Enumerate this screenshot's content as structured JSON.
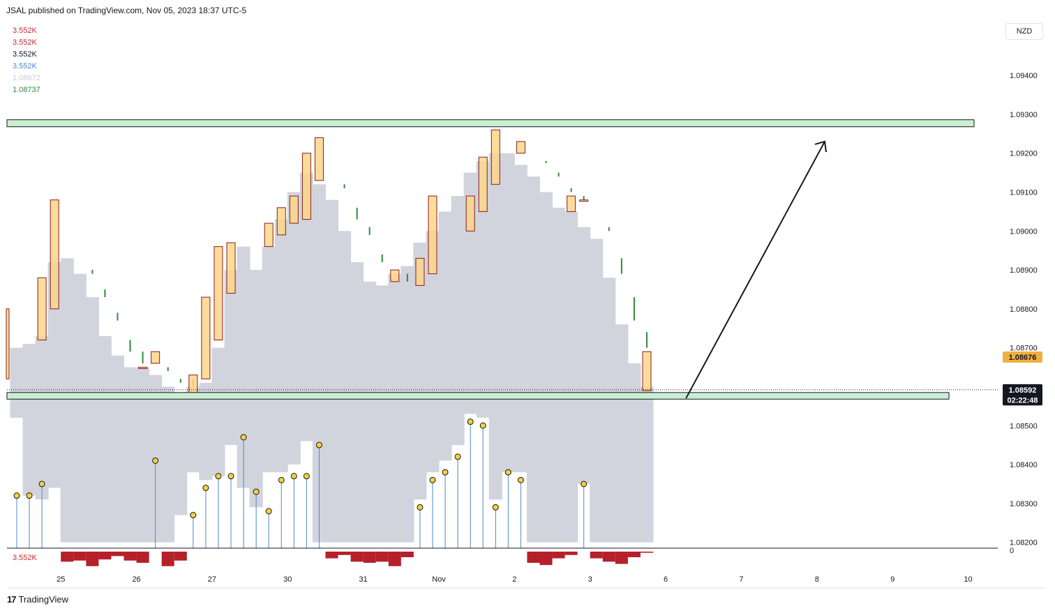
{
  "header": {
    "publisher": "JSAL published on TradingView.com, Nov 05, 2023 18:37 UTC-5"
  },
  "legend": [
    {
      "text": "3.552K",
      "color": "#c62833"
    },
    {
      "text": "3.552K",
      "color": "#c62833"
    },
    {
      "text": "3.552K",
      "color": "#131722"
    },
    {
      "text": "3.552K",
      "color": "#4a88d0"
    },
    {
      "text": "1.08672",
      "color": "#c9ccd6"
    },
    {
      "text": "1.08737",
      "color": "#2e8b3a"
    }
  ],
  "currency": "NZD",
  "volume_label": "3.552K",
  "footer": {
    "logo_text": "TradingView",
    "logo_mark": "17"
  },
  "price_badges": [
    {
      "text": "1.08676",
      "value": 1.08676,
      "bg": "#f0b040",
      "fg": "#131722"
    },
    {
      "text": "1.08592",
      "value": 1.08592,
      "bg": "#131722",
      "fg": "#ffffff"
    },
    {
      "text": "02:22:48",
      "value": 1.08566,
      "bg": "#131722",
      "fg": "#ffffff"
    }
  ],
  "colors": {
    "cloud": "#d2d4dd",
    "box_fill": "#fcd68a",
    "box_stroke": "#8a1c1c",
    "wick": "#2e8b3a",
    "dot": "#f6d03a",
    "stem": "#4a88d0",
    "volume": "#b5202a",
    "zone_fill": "#c9efd0",
    "zone_stroke": "#131722"
  },
  "chart_data": {
    "type": "line",
    "y_axis": {
      "ticks": [
        "1.09400",
        "1.09300",
        "1.09200",
        "1.09100",
        "1.09000",
        "1.08900",
        "1.08800",
        "1.08700",
        "1.08500",
        "1.08400",
        "1.08300",
        "1.08200"
      ],
      "tick_values": [
        1.094,
        1.093,
        1.092,
        1.091,
        1.09,
        1.089,
        1.088,
        1.087,
        1.085,
        1.084,
        1.083,
        1.082
      ],
      "volume_zero_label": "0",
      "range": [
        1.08185,
        1.0954
      ]
    },
    "x_axis": {
      "labels": [
        "25",
        "26",
        "27",
        "30",
        "31",
        "Nov",
        "2",
        "3",
        "6",
        "7",
        "8",
        "9",
        "10"
      ],
      "label_index": [
        3.5,
        9.5,
        15.5,
        21.5,
        27.5,
        33.5,
        39.5,
        45.5,
        51.5,
        57.5,
        63.5,
        69.5,
        75.5
      ]
    },
    "bar_count_visible": 51,
    "zones": [
      {
        "name": "resistance",
        "low": 1.09268,
        "high": 1.09286,
        "from_index": 0,
        "to_index": 77
      },
      {
        "name": "support",
        "low": 1.08568,
        "high": 1.08585,
        "from_index": 0,
        "to_index": 75
      }
    ],
    "arrow": {
      "from": [
        52,
        1.0857
      ],
      "to": [
        65.5,
        1.0923
      ]
    },
    "current_price_line": 1.08592,
    "cloud_top": [
      1.087,
      1.0871,
      1.0873,
      1.0892,
      1.0893,
      1.0889,
      1.0883,
      1.0873,
      1.0868,
      1.0865,
      1.0865,
      1.0863,
      1.086,
      1.0858,
      1.086,
      1.0861,
      1.087,
      1.089,
      1.0896,
      1.089,
      1.0896,
      1.0903,
      1.091,
      1.0915,
      1.0912,
      1.0908,
      1.09,
      1.0892,
      1.0887,
      1.0886,
      1.0889,
      1.0891,
      1.0897,
      1.09,
      1.0905,
      1.0909,
      1.0915,
      1.0918,
      1.092,
      1.092,
      1.0917,
      1.0914,
      1.091,
      1.0906,
      1.0905,
      1.0901,
      1.0898,
      1.0888,
      1.0876,
      1.0866,
      1.086
    ],
    "cloud_bottom": [
      1.0852,
      1.0832,
      1.0831,
      1.0834,
      1.082,
      1.082,
      1.082,
      1.082,
      1.082,
      1.082,
      1.082,
      1.082,
      1.082,
      1.0827,
      1.0838,
      1.0836,
      1.0837,
      1.0845,
      1.0834,
      1.0829,
      1.0838,
      1.0838,
      1.084,
      1.0846,
      1.082,
      1.082,
      1.082,
      1.082,
      1.082,
      1.082,
      1.082,
      1.082,
      1.0831,
      1.0838,
      1.0841,
      1.0845,
      1.0853,
      1.0852,
      1.0831,
      1.0838,
      1.0838,
      1.082,
      1.082,
      1.082,
      1.082,
      1.0835,
      1.082,
      1.082,
      1.082,
      1.082,
      1.082
    ],
    "boxes": [
      {
        "i": 0,
        "top": 1.088,
        "bottom": 1.0862
      },
      {
        "i": 2,
        "top": 1.0888,
        "bottom": 1.0872
      },
      {
        "i": 3,
        "top": 1.0908,
        "bottom": 1.088
      },
      {
        "i": 10,
        "top": 1.0865,
        "bottom": 1.0865
      },
      {
        "i": 11,
        "top": 1.0869,
        "bottom": 1.0866
      },
      {
        "i": 14,
        "top": 1.0863,
        "bottom": 1.0858
      },
      {
        "i": 15,
        "top": 1.0883,
        "bottom": 1.0862
      },
      {
        "i": 16,
        "top": 1.0896,
        "bottom": 1.0872
      },
      {
        "i": 17,
        "top": 1.0897,
        "bottom": 1.0884
      },
      {
        "i": 20,
        "top": 1.0902,
        "bottom": 1.0896
      },
      {
        "i": 21,
        "top": 1.0906,
        "bottom": 1.0899
      },
      {
        "i": 22,
        "top": 1.0909,
        "bottom": 1.0902
      },
      {
        "i": 23,
        "top": 1.092,
        "bottom": 1.0903
      },
      {
        "i": 24,
        "top": 1.0924,
        "bottom": 1.0913
      },
      {
        "i": 30,
        "top": 1.089,
        "bottom": 1.0887
      },
      {
        "i": 32,
        "top": 1.0893,
        "bottom": 1.0886
      },
      {
        "i": 33,
        "top": 1.0909,
        "bottom": 1.0889
      },
      {
        "i": 36,
        "top": 1.0909,
        "bottom": 1.09
      },
      {
        "i": 37,
        "top": 1.0919,
        "bottom": 1.0905
      },
      {
        "i": 38,
        "top": 1.0926,
        "bottom": 1.0912
      },
      {
        "i": 40,
        "top": 1.0923,
        "bottom": 1.092
      },
      {
        "i": 44,
        "top": 1.0909,
        "bottom": 1.0905
      },
      {
        "i": 45,
        "top": 1.0908,
        "bottom": 1.0908
      },
      {
        "i": 50,
        "top": 1.0869,
        "bottom": 1.0859
      }
    ],
    "wicks": [
      {
        "i": 6,
        "top": 1.089,
        "bottom": 1.0889
      },
      {
        "i": 7,
        "top": 1.0885,
        "bottom": 1.0883
      },
      {
        "i": 8,
        "top": 1.0879,
        "bottom": 1.0877
      },
      {
        "i": 9,
        "top": 1.0872,
        "bottom": 1.0869
      },
      {
        "i": 10,
        "top": 1.0869,
        "bottom": 1.0866
      },
      {
        "i": 12,
        "top": 1.0865,
        "bottom": 1.0864
      },
      {
        "i": 13,
        "top": 1.0862,
        "bottom": 1.0861
      },
      {
        "i": 14,
        "top": 1.0862,
        "bottom": 1.086
      },
      {
        "i": 26,
        "top": 1.0912,
        "bottom": 1.0911
      },
      {
        "i": 27,
        "top": 1.0906,
        "bottom": 1.0903
      },
      {
        "i": 28,
        "top": 1.0901,
        "bottom": 1.0899
      },
      {
        "i": 29,
        "top": 1.0894,
        "bottom": 1.0892
      },
      {
        "i": 31,
        "top": 1.0889,
        "bottom": 1.0887
      },
      {
        "i": 42,
        "top": 1.0918,
        "bottom": 1.0918
      },
      {
        "i": 43,
        "top": 1.0915,
        "bottom": 1.0914
      },
      {
        "i": 44,
        "top": 1.0911,
        "bottom": 1.091
      },
      {
        "i": 45,
        "top": 1.0909,
        "bottom": 1.0908
      },
      {
        "i": 47,
        "top": 1.0901,
        "bottom": 1.09
      },
      {
        "i": 48,
        "top": 1.0893,
        "bottom": 1.0889
      },
      {
        "i": 49,
        "top": 1.0883,
        "bottom": 1.0877
      },
      {
        "i": 50,
        "top": 1.0874,
        "bottom": 1.087
      }
    ],
    "dots": [
      {
        "i": 0,
        "value": 1.0832
      },
      {
        "i": 1,
        "value": 1.0832
      },
      {
        "i": 2,
        "value": 1.0835
      },
      {
        "i": 11,
        "value": 1.0841
      },
      {
        "i": 14,
        "value": 1.0827
      },
      {
        "i": 15,
        "value": 1.0834
      },
      {
        "i": 16,
        "value": 1.0837
      },
      {
        "i": 17,
        "value": 1.0837
      },
      {
        "i": 18,
        "value": 1.0847
      },
      {
        "i": 19,
        "value": 1.0833
      },
      {
        "i": 20,
        "value": 1.0828
      },
      {
        "i": 21,
        "value": 1.0836
      },
      {
        "i": 22,
        "value": 1.0837
      },
      {
        "i": 23,
        "value": 1.0837
      },
      {
        "i": 24,
        "value": 1.0845
      },
      {
        "i": 32,
        "value": 1.0829
      },
      {
        "i": 33,
        "value": 1.0836
      },
      {
        "i": 34,
        "value": 1.0838
      },
      {
        "i": 35,
        "value": 1.0842
      },
      {
        "i": 36,
        "value": 1.0851
      },
      {
        "i": 37,
        "value": 1.085
      },
      {
        "i": 38,
        "value": 1.0829
      },
      {
        "i": 39,
        "value": 1.0838
      },
      {
        "i": 40,
        "value": 1.0836
      },
      {
        "i": 45,
        "value": 1.0835
      }
    ],
    "volume": [
      {
        "i": 4,
        "value": 0.9
      },
      {
        "i": 5,
        "value": 0.8
      },
      {
        "i": 6,
        "value": 1.3
      },
      {
        "i": 7,
        "value": 0.7
      },
      {
        "i": 8,
        "value": 0.4
      },
      {
        "i": 9,
        "value": 0.8
      },
      {
        "i": 10,
        "value": 1.0
      },
      {
        "i": 12,
        "value": 1.3
      },
      {
        "i": 13,
        "value": 0.8
      },
      {
        "i": 25,
        "value": 0.6
      },
      {
        "i": 26,
        "value": 0.3
      },
      {
        "i": 27,
        "value": 0.9
      },
      {
        "i": 28,
        "value": 1.0
      },
      {
        "i": 29,
        "value": 0.9
      },
      {
        "i": 30,
        "value": 1.3
      },
      {
        "i": 31,
        "value": 0.5
      },
      {
        "i": 41,
        "value": 1.0
      },
      {
        "i": 42,
        "value": 1.2
      },
      {
        "i": 43,
        "value": 0.6
      },
      {
        "i": 44,
        "value": 0.3
      },
      {
        "i": 46,
        "value": 0.6
      },
      {
        "i": 47,
        "value": 0.9
      },
      {
        "i": 48,
        "value": 1.1
      },
      {
        "i": 49,
        "value": 0.5
      },
      {
        "i": 50,
        "value": 0.1
      }
    ]
  }
}
